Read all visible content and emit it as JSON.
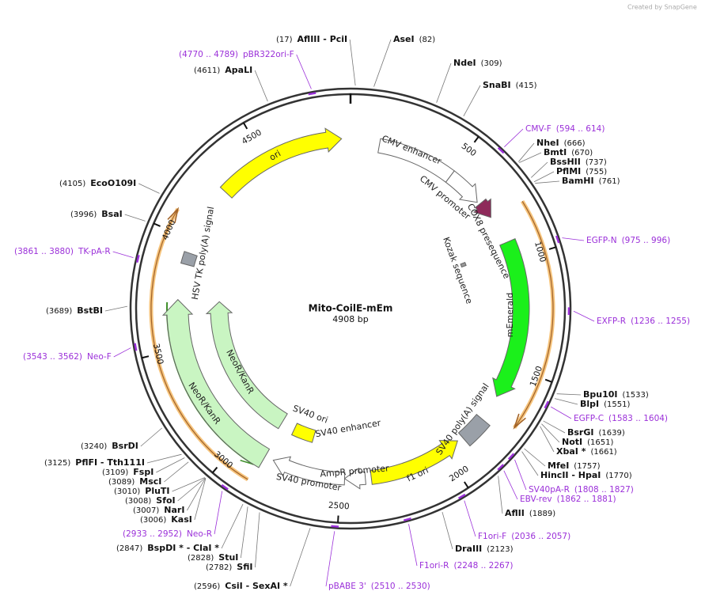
{
  "credit": "Created by SnapGene",
  "plasmid": {
    "name": "Mito-CoilE-mEm",
    "size": "4908 bp"
  },
  "ruler": [
    "500",
    "1000",
    "1500",
    "2000",
    "2500",
    "3000",
    "3500",
    "4000",
    "4500"
  ],
  "sites": [
    {
      "name": "AflIII - PciI",
      "pos": "(17)"
    },
    {
      "name": "AseI",
      "pos": "(82)"
    },
    {
      "name": "NdeI",
      "pos": "(309)"
    },
    {
      "name": "SnaBI",
      "pos": "(415)"
    },
    {
      "name": "NheI",
      "pos": "(666)"
    },
    {
      "name": "BmtI",
      "pos": "(670)"
    },
    {
      "name": "BssHII",
      "pos": "(737)"
    },
    {
      "name": "PflMI",
      "pos": "(755)"
    },
    {
      "name": "BamHI",
      "pos": "(761)"
    },
    {
      "name": "Bpu10I",
      "pos": "(1533)"
    },
    {
      "name": "BlpI",
      "pos": "(1551)"
    },
    {
      "name": "BsrGI",
      "pos": "(1639)"
    },
    {
      "name": "NotI",
      "pos": "(1651)"
    },
    {
      "name": "XbaI *",
      "pos": "(1661)"
    },
    {
      "name": "MfeI",
      "pos": "(1757)"
    },
    {
      "name": "HincII - HpaI",
      "pos": "(1770)"
    },
    {
      "name": "AflII",
      "pos": "(1889)"
    },
    {
      "name": "DraIII",
      "pos": "(2123)"
    },
    {
      "name": "CsiI - SexAI *",
      "pos": "(2596)"
    },
    {
      "name": "SfiI",
      "pos": "(2782)"
    },
    {
      "name": "StuI",
      "pos": "(2828)"
    },
    {
      "name": "BspDI * - ClaI *",
      "pos": "(2847)"
    },
    {
      "name": "KasI",
      "pos": "(3006)"
    },
    {
      "name": "NarI",
      "pos": "(3007)"
    },
    {
      "name": "SfoI",
      "pos": "(3008)"
    },
    {
      "name": "PluTI",
      "pos": "(3010)"
    },
    {
      "name": "MscI",
      "pos": "(3089)"
    },
    {
      "name": "FspI",
      "pos": "(3109)"
    },
    {
      "name": "PflFI - Tth111I",
      "pos": "(3125)"
    },
    {
      "name": "BsrDI",
      "pos": "(3240)"
    },
    {
      "name": "BstBI",
      "pos": "(3689)"
    },
    {
      "name": "BsaI",
      "pos": "(3996)"
    },
    {
      "name": "EcoO109I",
      "pos": "(4105)"
    },
    {
      "name": "ApaLI",
      "pos": "(4611)"
    }
  ],
  "primers": [
    {
      "name": "pBR322ori-F",
      "range": "(4770 .. 4789)"
    },
    {
      "name": "CMV-F",
      "range": "(594 .. 614)"
    },
    {
      "name": "EGFP-N",
      "range": "(975 .. 996)"
    },
    {
      "name": "EXFP-R",
      "range": "(1236 .. 1255)"
    },
    {
      "name": "EGFP-C",
      "range": "(1583 .. 1604)"
    },
    {
      "name": "SV40pA-R",
      "range": "(1808 .. 1827)"
    },
    {
      "name": "EBV-rev",
      "range": "(1862 .. 1881)"
    },
    {
      "name": "F1ori-F",
      "range": "(2036 .. 2057)"
    },
    {
      "name": "F1ori-R",
      "range": "(2248 .. 2267)"
    },
    {
      "name": "pBABE 3'",
      "range": "(2510 .. 2530)"
    },
    {
      "name": "Neo-R",
      "range": "(2933 .. 2952)"
    },
    {
      "name": "Neo-F",
      "range": "(3543 .. 3562)"
    },
    {
      "name": "TK-pA-R",
      "range": "(3861 .. 3880)"
    }
  ],
  "features": [
    "ori",
    "CMV enhancer",
    "CMV promoter",
    "COX8 presequence",
    "Kozak sequence",
    "mEmerald",
    "SV40 poly(A) signal",
    "f1 ori",
    "AmpR promoter",
    "SV40 promoter",
    "SV40 ori",
    "SV40 enhancer",
    "NeoR/KanR",
    "NeoR/KanR",
    "HSV TK poly(A) signal"
  ]
}
